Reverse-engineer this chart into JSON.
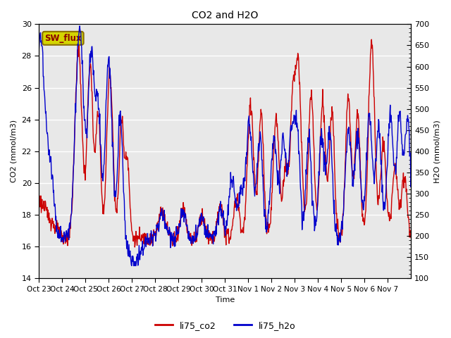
{
  "title": "CO2 and H2O",
  "xlabel": "Time",
  "ylabel_left": "CO2 (mmol/m3)",
  "ylabel_right": "H2O (mmol/m3)",
  "ylim_left": [
    14,
    30
  ],
  "ylim_right": [
    100,
    700
  ],
  "yticks_left": [
    14,
    16,
    18,
    20,
    22,
    24,
    26,
    28,
    30
  ],
  "yticks_right": [
    100,
    150,
    200,
    250,
    300,
    350,
    400,
    450,
    500,
    550,
    600,
    650,
    700
  ],
  "xtick_labels": [
    "Oct 23",
    "Oct 24",
    "Oct 25",
    "Oct 26",
    "Oct 27",
    "Oct 28",
    "Oct 29",
    "Oct 30",
    "Oct 31",
    "Nov 1",
    "Nov 2",
    "Nov 3",
    "Nov 4",
    "Nov 5",
    "Nov 6",
    "Nov 7"
  ],
  "co2_color": "#cc0000",
  "h2o_color": "#0000cc",
  "line_width": 1.0,
  "fig_facecolor": "#ffffff",
  "plot_facecolor": "#e8e8e8",
  "grid_color": "#ffffff",
  "legend_label_co2": "li75_co2",
  "legend_label_h2o": "li75_h2o",
  "annotation_text": "SW_flux",
  "annotation_bbox_facecolor": "#d4d400",
  "annotation_bbox_edgecolor": "#8B7000",
  "title_fontsize": 10,
  "axis_fontsize": 8,
  "tick_fontsize": 8
}
